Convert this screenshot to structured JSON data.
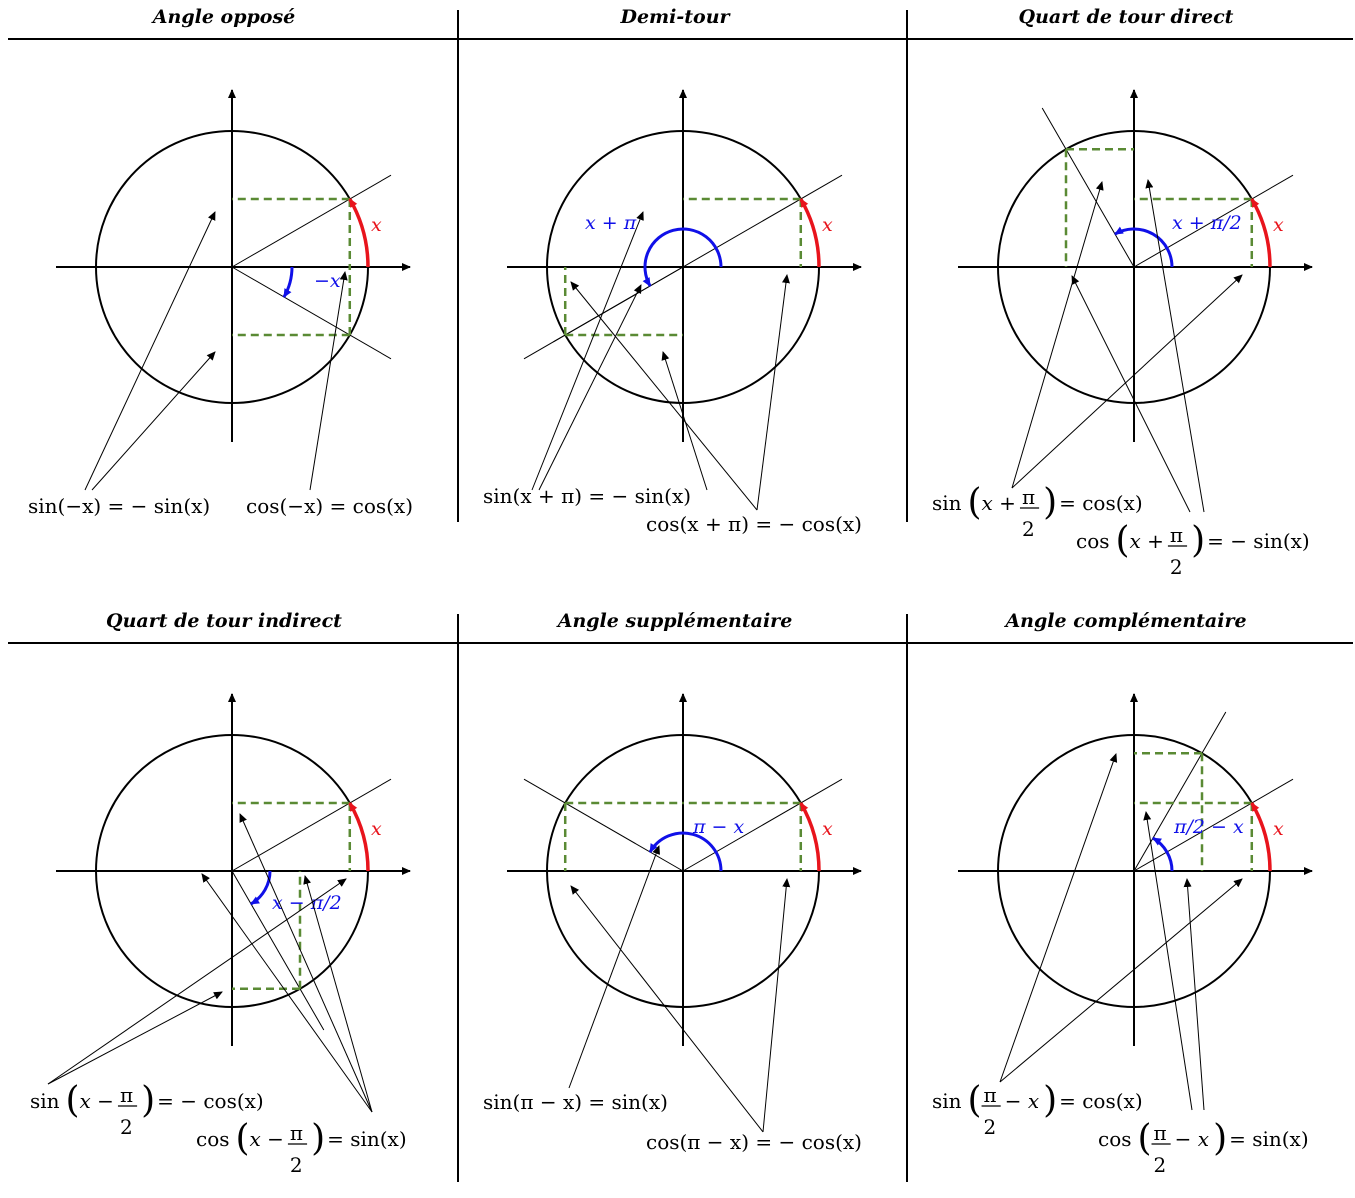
{
  "panels": [
    {
      "title": "Angle opposé",
      "angle_label": "−x",
      "x_label": "x",
      "formulas": [
        {
          "text": "sin(−x) = − sin(x)"
        },
        {
          "text": "cos(−x) = cos(x)"
        }
      ]
    },
    {
      "title": "Demi-tour",
      "angle_label": "x + π",
      "x_label": "x",
      "formulas": [
        {
          "text": "sin(x + π) = − sin(x)"
        },
        {
          "text": "cos(x + π) = − cos(x)"
        }
      ]
    },
    {
      "title": "Quart de tour direct",
      "angle_label": "x + π/2",
      "x_label": "x",
      "formulas": [
        {
          "pre": "sin",
          "inner_a": "x +",
          "num": "π",
          "den": "2",
          "inner_b": "",
          "post": "= cos(x)"
        },
        {
          "pre": "cos",
          "inner_a": "x +",
          "num": "π",
          "den": "2",
          "inner_b": "",
          "post": "= − sin(x)"
        }
      ]
    },
    {
      "title": "Quart de tour indirect",
      "angle_label": "x − π/2",
      "x_label": "x",
      "formulas": [
        {
          "pre": "sin",
          "inner_a": "x −",
          "num": "π",
          "den": "2",
          "inner_b": "",
          "post": "= − cos(x)"
        },
        {
          "pre": "cos",
          "inner_a": "x −",
          "num": "π",
          "den": "2",
          "inner_b": "",
          "post": "= sin(x)"
        }
      ]
    },
    {
      "title": "Angle supplémentaire",
      "angle_label": "π − x",
      "x_label": "x",
      "formulas": [
        {
          "text": "sin(π − x) = sin(x)"
        },
        {
          "text": "cos(π − x) = − cos(x)"
        }
      ]
    },
    {
      "title": "Angle complémentaire",
      "angle_label": "π/2 − x",
      "x_label": "x",
      "formulas": [
        {
          "pre": "sin",
          "inner_a": "",
          "num": "π",
          "den": "2",
          "inner_b": "− x",
          "post": "= cos(x)"
        },
        {
          "pre": "cos",
          "inner_a": "",
          "num": "π",
          "den": "2",
          "inner_b": "− x",
          "post": "= sin(x)"
        }
      ]
    }
  ],
  "colors": {
    "x_arc": "#e8141c",
    "angle_arc": "#1010e8",
    "projection": "#5a8a34",
    "axis": "#000000"
  }
}
